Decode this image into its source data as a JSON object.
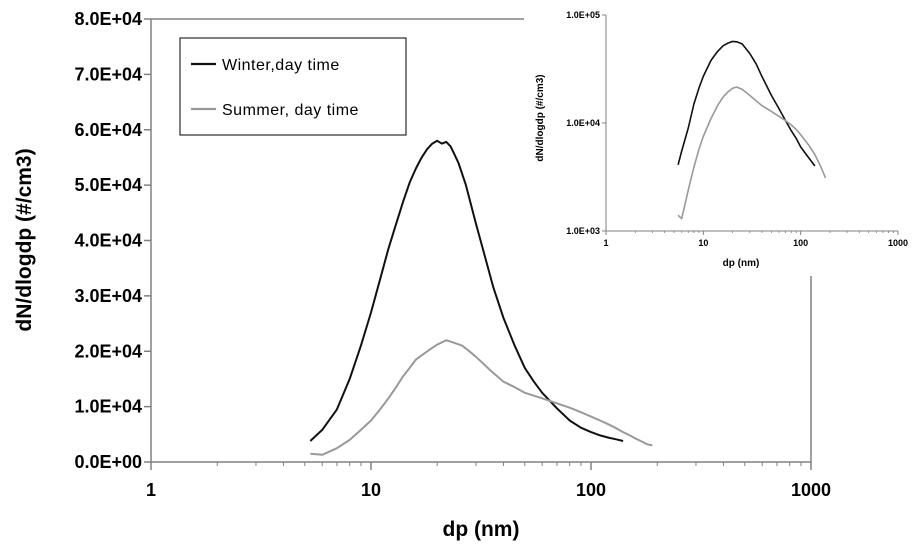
{
  "legend": {
    "winter": "Winter,day time",
    "summer": "Summer, day time"
  },
  "colors": {
    "winter": "#111111",
    "summer": "#999999",
    "axis": "#808080"
  },
  "chart_data": [
    {
      "type": "line",
      "xlabel": "dp (nm)",
      "ylabel": "dN/dlogdp (#/cm3)",
      "x_scale": "log",
      "y_scale": "linear",
      "xlim": [
        1,
        1000
      ],
      "ylim": [
        0,
        80000
      ],
      "x_ticks": [
        {
          "value": 1,
          "label": "1"
        },
        {
          "value": 10,
          "label": "10"
        },
        {
          "value": 100,
          "label": "100"
        },
        {
          "value": 1000,
          "label": "1000"
        }
      ],
      "y_ticks": [
        {
          "value": 0,
          "label": "0.0E+00"
        },
        {
          "value": 10000,
          "label": "1.0E+04"
        },
        {
          "value": 20000,
          "label": "2.0E+04"
        },
        {
          "value": 30000,
          "label": "3.0E+04"
        },
        {
          "value": 40000,
          "label": "4.0E+04"
        },
        {
          "value": 50000,
          "label": "5.0E+04"
        },
        {
          "value": 60000,
          "label": "6.0E+04"
        },
        {
          "value": 70000,
          "label": "7.0E+04"
        },
        {
          "value": 80000,
          "label": "8.0E+04"
        }
      ],
      "grid": false,
      "legend_position": "top-left",
      "series": [
        {
          "name": "Winter,day time",
          "x": [
            5.3,
            6,
            7,
            8,
            9,
            10,
            11,
            12,
            13,
            14,
            15,
            16,
            17,
            18,
            19,
            20,
            21,
            22,
            23,
            24,
            25,
            27,
            30,
            33,
            36,
            40,
            45,
            50,
            55,
            60,
            70,
            80,
            90,
            100,
            110,
            120,
            130,
            140
          ],
          "y": [
            3800,
            5800,
            9500,
            15000,
            21000,
            27000,
            33000,
            38500,
            43000,
            47000,
            50500,
            53000,
            55000,
            56500,
            57500,
            58000,
            57500,
            57800,
            57000,
            55500,
            54000,
            50000,
            43000,
            37000,
            31500,
            26000,
            21000,
            17000,
            14500,
            12500,
            9700,
            7500,
            6200,
            5400,
            4800,
            4400,
            4100,
            3800
          ]
        },
        {
          "name": "Summer, day time",
          "x": [
            5.3,
            6,
            7,
            8,
            9,
            10,
            11,
            12,
            13,
            14,
            15,
            16,
            18,
            20,
            22,
            24,
            26,
            28,
            30,
            35,
            40,
            45,
            50,
            60,
            70,
            80,
            90,
            100,
            110,
            120,
            130,
            140,
            150,
            160,
            170,
            180,
            190
          ],
          "y": [
            1500,
            1300,
            2500,
            4000,
            5800,
            7500,
            9500,
            11500,
            13500,
            15500,
            17000,
            18500,
            20000,
            21200,
            22000,
            21500,
            21000,
            20000,
            19000,
            16500,
            14500,
            13500,
            12500,
            11500,
            10600,
            9800,
            9000,
            8200,
            7500,
            6800,
            6100,
            5400,
            4800,
            4200,
            3700,
            3200,
            3000
          ]
        }
      ]
    },
    {
      "type": "line",
      "xlabel": "dp (nm)",
      "ylabel": "dN/dlogdp (#/cm3)",
      "x_scale": "log",
      "y_scale": "log",
      "xlim": [
        1,
        1000
      ],
      "ylim": [
        1000,
        100000
      ],
      "x_ticks": [
        {
          "value": 1,
          "label": "1"
        },
        {
          "value": 10,
          "label": "10"
        },
        {
          "value": 100,
          "label": "100"
        },
        {
          "value": 1000,
          "label": "1000"
        }
      ],
      "y_ticks": [
        {
          "value": 1000,
          "label": "1.0E+03"
        },
        {
          "value": 10000,
          "label": "1.0E+04"
        },
        {
          "value": 100000,
          "label": "1.0E+05"
        }
      ],
      "grid": false,
      "series": [
        {
          "name": "Winter,day time",
          "x": [
            5.5,
            6,
            7,
            8,
            9,
            10,
            12,
            14,
            16,
            18,
            20,
            22,
            25,
            30,
            35,
            40,
            50,
            60,
            70,
            80,
            90,
            100,
            120,
            140
          ],
          "y": [
            4100,
            5500,
            9000,
            15000,
            21000,
            27000,
            38000,
            46000,
            52000,
            55000,
            57000,
            56500,
            54000,
            44000,
            35000,
            27000,
            18000,
            13500,
            10500,
            8500,
            7200,
            6000,
            4800,
            4000
          ]
        },
        {
          "name": "Summer, day time",
          "x": [
            5.5,
            6,
            7,
            8,
            9,
            10,
            12,
            14,
            16,
            18,
            20,
            22,
            25,
            30,
            35,
            40,
            50,
            60,
            70,
            80,
            90,
            100,
            120,
            140,
            160,
            180
          ],
          "y": [
            1400,
            1300,
            2400,
            3900,
            5700,
            7500,
            11000,
            14500,
            17500,
            19500,
            21000,
            21500,
            20500,
            18000,
            16000,
            14500,
            12800,
            11500,
            10500,
            9600,
            8700,
            7800,
            6300,
            5100,
            4000,
            3100
          ]
        }
      ]
    }
  ]
}
